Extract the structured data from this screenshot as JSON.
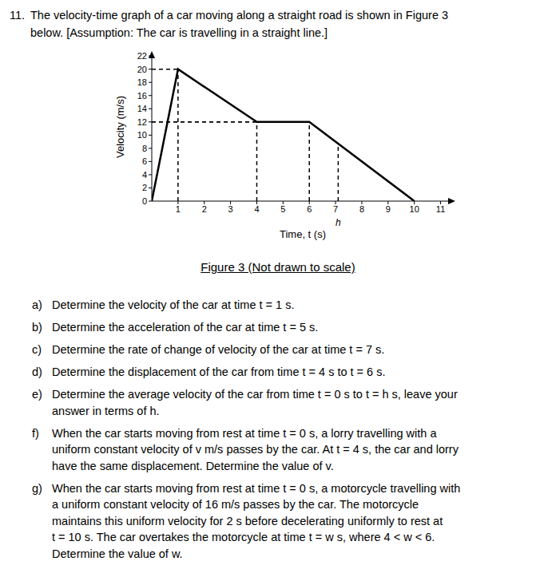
{
  "question": {
    "number": "11.",
    "lines": [
      "The velocity-time graph of a car moving along a straight road is shown in Figure 3",
      "below. [Assumption: The car is travelling in a straight line.]"
    ]
  },
  "chart_data": {
    "type": "line",
    "x": [
      0,
      1,
      4,
      6,
      10
    ],
    "values": [
      0,
      20,
      12,
      12,
      0
    ],
    "color": "#000000",
    "line_style": "solid",
    "xlabel": "Time, t (s)",
    "ylabel": "Velocity (m/s)",
    "xlim": [
      0,
      11.5
    ],
    "ylim": [
      0,
      22.5
    ],
    "xticks": [
      1,
      2,
      3,
      4,
      5,
      6,
      7,
      8,
      9,
      10,
      11
    ],
    "yticks": [
      0,
      2,
      4,
      6,
      8,
      10,
      12,
      14,
      16,
      18,
      20,
      22
    ],
    "grid": false,
    "annotations": [
      {
        "x": 7.1,
        "y": 8.7,
        "text": "h"
      }
    ]
  },
  "caption": "Figure 3 (Not drawn to scale)",
  "parts": [
    {
      "label": "a)",
      "lines": [
        "Determine the velocity of the car at time t = 1 s."
      ]
    },
    {
      "label": "b)",
      "lines": [
        "Determine the acceleration of the car at time t = 5 s."
      ]
    },
    {
      "label": "c)",
      "lines": [
        "Determine the rate of change of velocity of the car at time t = 7 s."
      ]
    },
    {
      "label": "d)",
      "lines": [
        "Determine the displacement of the car from time t = 4 s to t = 6 s."
      ]
    },
    {
      "label": "e)",
      "lines": [
        "Determine the average velocity of the car from time t = 0 s to t = h s, leave your",
        "answer in terms of h."
      ]
    },
    {
      "label": "f)",
      "lines": [
        "When the car starts moving from rest at time t = 0 s, a lorry travelling with a",
        "uniform constant velocity of v m/s passes by the car. At t = 4 s, the car and lorry",
        "have the same displacement. Determine the value of v."
      ]
    },
    {
      "label": "g)",
      "lines": [
        "When the car starts moving from rest at time t = 0 s, a motorcycle travelling with",
        "a uniform constant velocity of 16 m/s passes by the car. The motorcycle",
        "maintains this uniform velocity for 2 s before decelerating uniformly to rest at",
        "t = 10 s. The car overtakes the motorcycle at time t = w s, where 4 < w < 6.",
        "Determine the value of w."
      ]
    }
  ]
}
